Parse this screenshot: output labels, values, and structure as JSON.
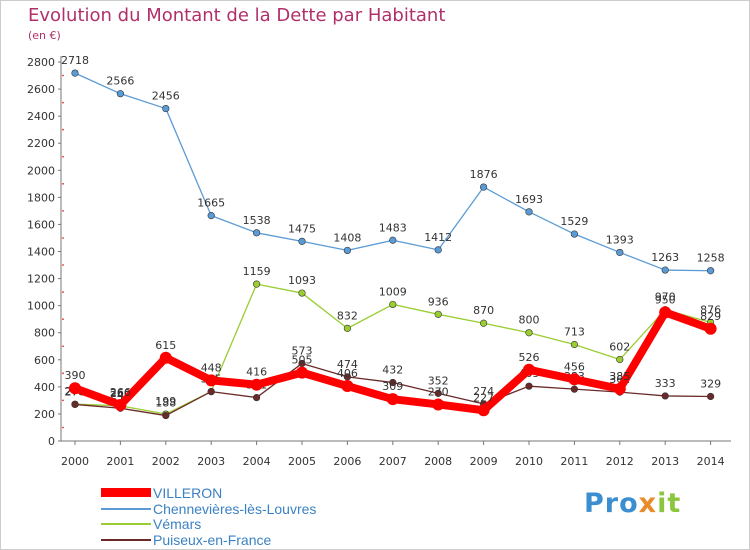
{
  "header": {
    "title": "Evolution du Montant de la Dette par Habitant",
    "subtitle": "(en €)"
  },
  "brand": {
    "p1": "Pro",
    "x": "x",
    "it": "it",
    "i2": "i"
  },
  "colors": {
    "title": "#b0306a",
    "axis_text": "#333333",
    "legend_text": "#3b82c4"
  },
  "chart_data": {
    "type": "line",
    "title": "Evolution du Montant de la Dette par Habitant",
    "subtitle": "(en €)",
    "xlabel": "",
    "ylabel": "",
    "x": [
      "2000",
      "2001",
      "2002",
      "2003",
      "2004",
      "2005",
      "2006",
      "2007",
      "2008",
      "2009",
      "2010",
      "2011",
      "2012",
      "2013",
      "2014"
    ],
    "ylim": [
      0,
      2800
    ],
    "yticks": [
      0,
      200,
      400,
      600,
      800,
      1000,
      1200,
      1400,
      1600,
      1800,
      2000,
      2200,
      2400,
      2600,
      2800
    ],
    "grid": false,
    "legend": "bottom-left",
    "series": [
      {
        "name": "Chennevières-lès-Louvres",
        "color": "#5b9bd5",
        "values": [
          2718,
          2566,
          2456,
          1665,
          1538,
          1475,
          1408,
          1483,
          1412,
          1876,
          1693,
          1529,
          1393,
          1263,
          1258
        ]
      },
      {
        "name": "Vémars",
        "color": "#9acd32",
        "values": [
          272,
          260,
          199,
          365,
          1159,
          1093,
          832,
          1009,
          936,
          870,
          800,
          713,
          602,
          970,
          876
        ]
      },
      {
        "name": "Puiseux-en-France",
        "color": "#6b2a2a",
        "values": [
          270,
          242,
          188,
          365,
          321,
          573,
          474,
          432,
          352,
          274,
          405,
          383,
          361,
          333,
          329
        ]
      },
      {
        "name": "VILLERON",
        "color": "#ff0000",
        "values": [
          390,
          266,
          615,
          448,
          416,
          505,
          406,
          309,
          270,
          227,
          526,
          456,
          385,
          950,
          829
        ]
      }
    ]
  }
}
